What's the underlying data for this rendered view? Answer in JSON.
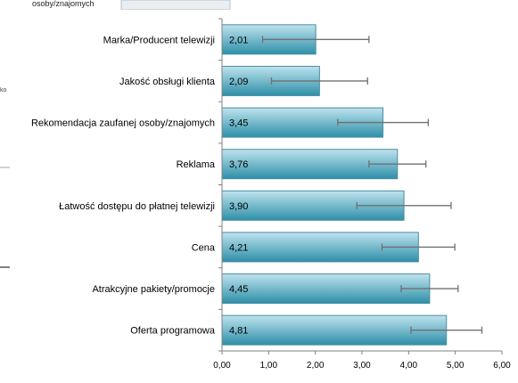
{
  "background": {
    "fragment_text": "osoby/znajomych",
    "fragment_text_2": "ko"
  },
  "colors": {
    "bar_top": "#2e8fa8",
    "bar_bottom": "#bfe3ee",
    "bar_border": "#4a8ea3",
    "error_bar": "#707070",
    "axis": "#808080"
  },
  "chart_data": {
    "type": "bar",
    "orientation": "horizontal",
    "categories": [
      "Marka/Producent telewizji",
      "Jakość obsługi klienta",
      "Rekomendacja zaufanej osoby/znajomych",
      "Reklama",
      "Łatwość dostępu do płatnej telewizji",
      "Cena",
      "Atrakcyjne pakiety/promocje",
      "Oferta programowa"
    ],
    "values": [
      2.01,
      2.09,
      3.45,
      3.76,
      3.9,
      4.21,
      4.45,
      4.81
    ],
    "value_labels": [
      "2,01",
      "2,09",
      "3,45",
      "3,76",
      "3,90",
      "4,21",
      "4,45",
      "4,81"
    ],
    "error_bars": [
      [
        0.87,
        3.15
      ],
      [
        1.06,
        3.12
      ],
      [
        2.48,
        4.42
      ],
      [
        3.15,
        4.37
      ],
      [
        2.89,
        4.91
      ],
      [
        3.43,
        4.99
      ],
      [
        3.84,
        5.06
      ],
      [
        4.05,
        5.57
      ]
    ],
    "xlim": [
      0,
      6
    ],
    "xticks": [
      0,
      1,
      2,
      3,
      4,
      5,
      6
    ],
    "xtick_labels": [
      "0,00",
      "1,00",
      "2,00",
      "3,00",
      "4,00",
      "5,00",
      "6,00"
    ],
    "title": "",
    "xlabel": "",
    "ylabel": "",
    "grid": false,
    "legend": "none"
  }
}
